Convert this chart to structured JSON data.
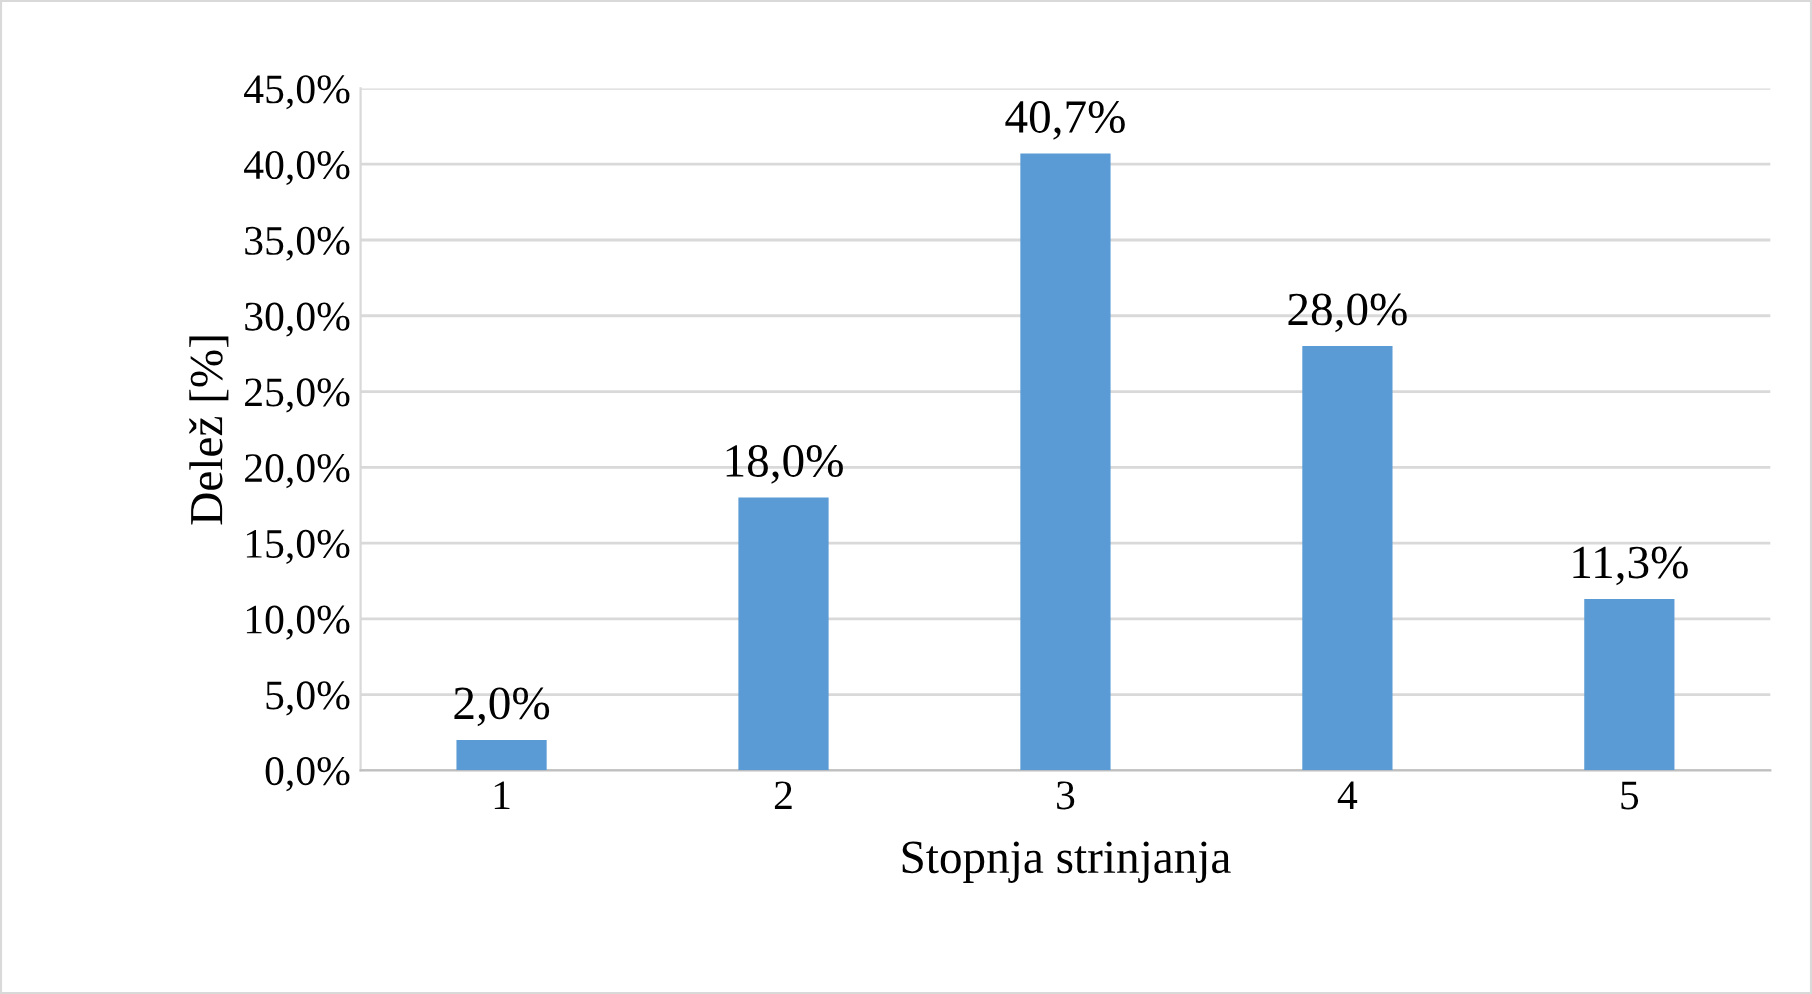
{
  "chart_data": {
    "type": "bar",
    "xlabel": "Stopnja strinjanja",
    "ylabel": "Delež [%]",
    "categories": [
      "1",
      "2",
      "3",
      "4",
      "5"
    ],
    "values": [
      2.0,
      18.0,
      40.7,
      28.0,
      11.3
    ],
    "value_labels": [
      "2,0%",
      "18,0%",
      "40,7%",
      "28,0%",
      "11,3%"
    ],
    "color": "#5b9bd5",
    "ylim": [
      0,
      45
    ],
    "yticks": [
      {
        "value": 0,
        "label": "0,0%"
      },
      {
        "value": 5,
        "label": "5,0%"
      },
      {
        "value": 10,
        "label": "10,0%"
      },
      {
        "value": 15,
        "label": "15,0%"
      },
      {
        "value": 20,
        "label": "20,0%"
      },
      {
        "value": 25,
        "label": "25,0%"
      },
      {
        "value": 30,
        "label": "30,0%"
      },
      {
        "value": 35,
        "label": "35,0%"
      },
      {
        "value": 40,
        "label": "40,0%"
      },
      {
        "value": 45,
        "label": "45,0%"
      }
    ],
    "grid": "y",
    "legend": false
  }
}
